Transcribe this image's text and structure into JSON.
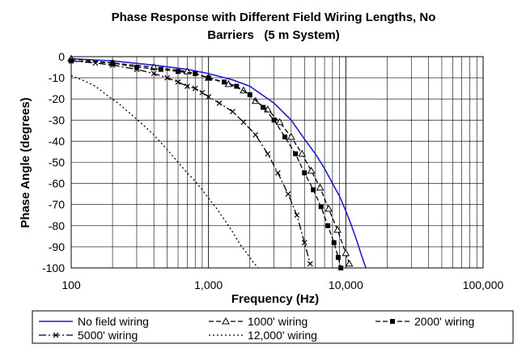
{
  "chart_data": {
    "type": "line",
    "title_lines": [
      "Phase Response with Different Field Wiring Lengths, No",
      "Barriers   (5 m System)"
    ],
    "xlabel": "Frequency (Hz)",
    "ylabel": "Phase Angle (degrees)",
    "xscale": "log",
    "xlim": [
      100,
      100000
    ],
    "ylim": [
      -100,
      0
    ],
    "grid": true,
    "x_tick_labels": [
      {
        "value": 100,
        "label": "100"
      },
      {
        "value": 1000,
        "label": "1,000"
      },
      {
        "value": 10000,
        "label": "10,000"
      },
      {
        "value": 100000,
        "label": "100,000"
      }
    ],
    "y_ticks": [
      0,
      -10,
      -20,
      -30,
      -40,
      -50,
      -60,
      -70,
      -80,
      -90,
      -100
    ],
    "legend_position": "bottom",
    "series": [
      {
        "name": "No field wiring",
        "style": "solid",
        "color": "#1f1fd0",
        "marker": "none",
        "x": [
          100,
          200,
          400,
          700,
          1000,
          1500,
          2000,
          3000,
          4000,
          5000,
          6000,
          7000,
          8000,
          9000,
          10000,
          11000,
          12000,
          13000,
          14000
        ],
        "y": [
          -1,
          -2,
          -4,
          -6,
          -8,
          -11,
          -14,
          -22,
          -30,
          -39,
          -46,
          -53,
          -60,
          -66,
          -73,
          -80,
          -87,
          -94,
          -100
        ]
      },
      {
        "name": "1000' wiring",
        "style": "dash",
        "color": "#000000",
        "marker": "triangle",
        "x": [
          100,
          200,
          400,
          700,
          1000,
          1400,
          1800,
          2200,
          2700,
          3300,
          4000,
          4800,
          5600,
          6500,
          7500,
          8700,
          10000,
          10600
        ],
        "y": [
          -1,
          -3,
          -5,
          -7,
          -10,
          -13,
          -16,
          -21,
          -25,
          -31,
          -38,
          -46,
          -54,
          -62,
          -72,
          -82,
          -93,
          -98
        ]
      },
      {
        "name": "2000' wiring",
        "style": "dash",
        "color": "#000000",
        "marker": "square",
        "x": [
          100,
          200,
          300,
          450,
          600,
          800,
          1000,
          1300,
          1600,
          2000,
          2500,
          3000,
          3600,
          4300,
          5000,
          5800,
          6600,
          7400,
          8200,
          8800,
          9200
        ],
        "y": [
          -2,
          -3,
          -5,
          -6,
          -7,
          -8,
          -10,
          -12,
          -14,
          -18,
          -24,
          -30,
          -38,
          -46,
          -55,
          -63,
          -71,
          -80,
          -88,
          -95,
          -100
        ]
      },
      {
        "name": "5000' wiring",
        "style": "dashdot",
        "color": "#000000",
        "marker": "x",
        "x": [
          100,
          150,
          200,
          300,
          400,
          500,
          600,
          700,
          800,
          900,
          1000,
          1200,
          1500,
          1800,
          2200,
          2700,
          3200,
          3800,
          4400,
          5000,
          5500
        ],
        "y": [
          -2,
          -3,
          -4,
          -6,
          -8,
          -10,
          -12,
          -14,
          -15,
          -17,
          -19,
          -22,
          -26,
          -31,
          -37,
          -46,
          -55,
          -65,
          -75,
          -88,
          -98
        ]
      },
      {
        "name": "12,000' wiring",
        "style": "dot",
        "color": "#000000",
        "marker": "none",
        "x": [
          100,
          120,
          150,
          180,
          220,
          270,
          330,
          400,
          500,
          600,
          700,
          800,
          900,
          1000,
          1150,
          1300,
          1500,
          1700,
          1900,
          2100,
          2300
        ],
        "y": [
          -9,
          -11,
          -14,
          -18,
          -22,
          -27,
          -32,
          -37,
          -44,
          -50,
          -55,
          -59,
          -63,
          -67,
          -72,
          -77,
          -83,
          -89,
          -93,
          -97,
          -100
        ]
      }
    ]
  }
}
